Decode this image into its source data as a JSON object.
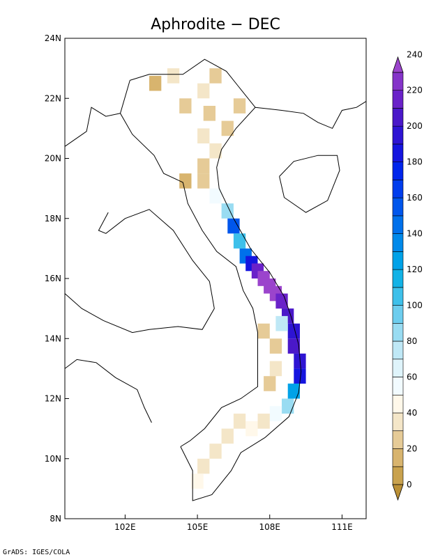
{
  "title": "Aphrodite − DEC",
  "credit": "GrADS: IGES/COLA",
  "map": {
    "lon_range": [
      99.5,
      112.0
    ],
    "lat_range": [
      8.0,
      24.0
    ],
    "lon_ticks": [
      {
        "value": 102,
        "label": "102E"
      },
      {
        "value": 105,
        "label": "105E"
      },
      {
        "value": 108,
        "label": "108E"
      },
      {
        "value": 111,
        "label": "111E"
      }
    ],
    "lat_ticks": [
      {
        "value": 8,
        "label": "8N"
      },
      {
        "value": 10,
        "label": "10N"
      },
      {
        "value": 12,
        "label": "12N"
      },
      {
        "value": 14,
        "label": "14N"
      },
      {
        "value": 16,
        "label": "16N"
      },
      {
        "value": 18,
        "label": "18N"
      },
      {
        "value": 20,
        "label": "20N"
      },
      {
        "value": 22,
        "label": "22N"
      },
      {
        "value": 24,
        "label": "24N"
      }
    ]
  },
  "colorbar": {
    "labels": [
      "0",
      "20",
      "40",
      "60",
      "80",
      "100",
      "120",
      "140",
      "160",
      "180",
      "200",
      "220",
      "240"
    ],
    "colors": [
      "#c9a24e",
      "#d8b46e",
      "#e6cb97",
      "#f4e6c8",
      "#fff8ea",
      "#f2fbff",
      "#dff4fb",
      "#bfe8f6",
      "#99dcf2",
      "#6dcdee",
      "#3ec0ea",
      "#12b2e6",
      "#00a2e8",
      "#0089ea",
      "#0070eb",
      "#0056ec",
      "#003ded",
      "#0025ec",
      "#1515df",
      "#2e14d3",
      "#4a18c9",
      "#6a22c9",
      "#8534c9"
    ],
    "under_color": "#bb9036",
    "over_color": "#9b44cc"
  },
  "chart_data": {
    "type": "heatmap",
    "title": "Aphrodite − DEC",
    "variable_scale": [
      0,
      250
    ],
    "xlabel": "",
    "ylabel": "",
    "xlim": [
      99.5,
      112.0
    ],
    "ylim": [
      8.0,
      24.0
    ],
    "cells": [
      [
        103.25,
        22.5,
        15
      ],
      [
        104.0,
        22.75,
        35
      ],
      [
        105.25,
        22.25,
        30
      ],
      [
        105.75,
        22.75,
        20
      ],
      [
        104.5,
        21.75,
        25
      ],
      [
        105.5,
        21.5,
        20
      ],
      [
        106.25,
        21.0,
        25
      ],
      [
        106.75,
        21.75,
        20
      ],
      [
        105.25,
        20.75,
        30
      ],
      [
        105.75,
        20.25,
        35
      ],
      [
        105.25,
        19.75,
        20
      ],
      [
        104.5,
        19.25,
        15
      ],
      [
        105.25,
        19.25,
        25
      ],
      [
        105.75,
        18.75,
        50
      ],
      [
        106.25,
        18.25,
        80
      ],
      [
        106.5,
        17.75,
        150
      ],
      [
        106.75,
        17.25,
        100
      ],
      [
        107.0,
        16.75,
        140
      ],
      [
        107.25,
        16.5,
        180
      ],
      [
        107.5,
        16.25,
        210
      ],
      [
        107.75,
        16.0,
        240
      ],
      [
        108.0,
        15.75,
        240
      ],
      [
        108.25,
        15.5,
        230
      ],
      [
        108.5,
        15.25,
        210
      ],
      [
        108.75,
        14.75,
        200
      ],
      [
        109.0,
        14.25,
        190
      ],
      [
        109.0,
        13.75,
        200
      ],
      [
        109.25,
        13.25,
        190
      ],
      [
        109.25,
        12.75,
        180
      ],
      [
        109.0,
        12.25,
        120
      ],
      [
        108.75,
        11.75,
        80
      ],
      [
        108.25,
        11.5,
        50
      ],
      [
        107.75,
        11.25,
        35
      ],
      [
        107.25,
        11.0,
        40
      ],
      [
        106.75,
        11.25,
        30
      ],
      [
        106.25,
        10.75,
        35
      ],
      [
        105.75,
        10.25,
        30
      ],
      [
        105.25,
        9.75,
        35
      ],
      [
        105.0,
        9.25,
        45
      ],
      [
        108.25,
        13.75,
        25
      ],
      [
        108.25,
        13.0,
        30
      ],
      [
        108.0,
        12.5,
        25
      ],
      [
        107.75,
        14.25,
        20
      ],
      [
        108.5,
        14.5,
        70
      ]
    ]
  }
}
